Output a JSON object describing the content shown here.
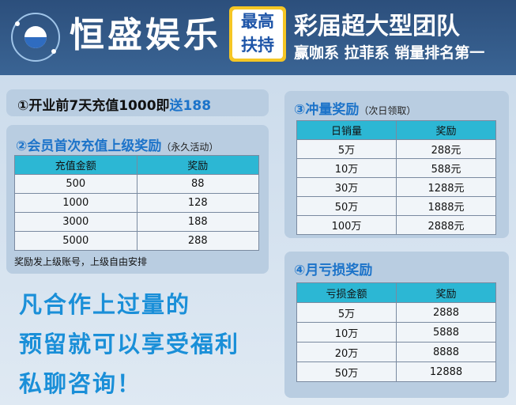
{
  "header": {
    "brand": "恒盛娱乐",
    "badge": [
      "最高",
      "扶持"
    ],
    "headline": "彩届超大型团队",
    "subline": "赢咖系 拉菲系 销量排名第一"
  },
  "promo": {
    "text": "①开业前7天充值1000即",
    "highlight": "送188"
  },
  "first_recharge": {
    "title": "②会员首次充值上级奖励",
    "note": "（永久活动）",
    "table": {
      "columns": [
        "充值金额",
        "奖励"
      ],
      "rows": [
        [
          "500",
          "88"
        ],
        [
          "1000",
          "128"
        ],
        [
          "3000",
          "188"
        ],
        [
          "5000",
          "288"
        ]
      ]
    },
    "footer": "奖励发上级账号，上级自由安排"
  },
  "volume": {
    "title": "③冲量奖励",
    "note": "（次日领取）",
    "table": {
      "columns": [
        "日销量",
        "奖励"
      ],
      "rows": [
        [
          "5万",
          "288元"
        ],
        [
          "10万",
          "588元"
        ],
        [
          "30万",
          "1288元"
        ],
        [
          "50万",
          "1888元"
        ],
        [
          "100万",
          "2888元"
        ]
      ]
    }
  },
  "loss": {
    "title": "④月亏损奖励",
    "table": {
      "columns": [
        "亏损金额",
        "奖励"
      ],
      "rows": [
        [
          "5万",
          "2888"
        ],
        [
          "10万",
          "5888"
        ],
        [
          "20万",
          "8888"
        ],
        [
          "50万",
          "12888"
        ]
      ]
    }
  },
  "slogan": [
    "凡合作上过量的",
    "预留就可以享受福利",
    "私聊咨询！"
  ]
}
